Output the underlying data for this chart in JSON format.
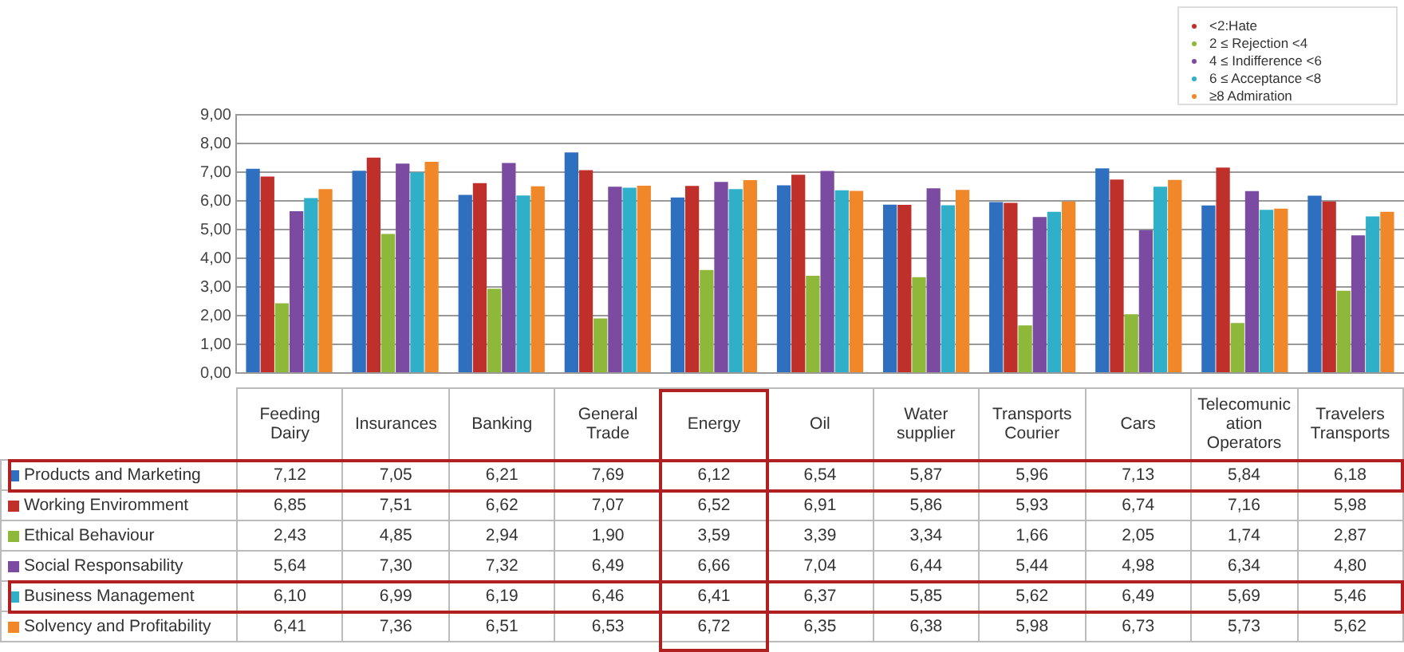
{
  "chart_data": {
    "type": "bar",
    "categories": [
      "Feeding Dairy",
      "Insurances",
      "Banking",
      "General Trade",
      "Energy",
      "Oil",
      "Water supplier",
      "Transports Courier",
      "Cars",
      "Telecomunication Operators",
      "Travelers Transports"
    ],
    "series": [
      {
        "name": "Products and Marketing",
        "color": "#2e6fc0",
        "values": [
          7.12,
          7.05,
          6.21,
          7.69,
          6.12,
          6.54,
          5.87,
          5.96,
          7.13,
          5.84,
          6.18
        ],
        "value_labels": [
          "7,12",
          "7,05",
          "6,21",
          "7,69",
          "6,12",
          "6,54",
          "5,87",
          "5,96",
          "7,13",
          "5,84",
          "6,18"
        ]
      },
      {
        "name": "Working Enviromment",
        "color": "#c0302a",
        "values": [
          6.85,
          7.51,
          6.62,
          7.07,
          6.52,
          6.91,
          5.86,
          5.93,
          6.74,
          7.16,
          5.98
        ],
        "value_labels": [
          "6,85",
          "7,51",
          "6,62",
          "7,07",
          "6,52",
          "6,91",
          "5,86",
          "5,93",
          "6,74",
          "7,16",
          "5,98"
        ]
      },
      {
        "name": "Ethical Behaviour",
        "color": "#8db83a",
        "values": [
          2.43,
          4.85,
          2.94,
          1.9,
          3.59,
          3.39,
          3.34,
          1.66,
          2.05,
          1.74,
          2.87
        ],
        "value_labels": [
          "2,43",
          "4,85",
          "2,94",
          "1,90",
          "3,59",
          "3,39",
          "3,34",
          "1,66",
          "2,05",
          "1,74",
          "2,87"
        ]
      },
      {
        "name": "Social Responsability",
        "color": "#7a4ba0",
        "values": [
          5.64,
          7.3,
          7.32,
          6.49,
          6.66,
          7.04,
          6.44,
          5.44,
          4.98,
          6.34,
          4.8
        ],
        "value_labels": [
          "5,64",
          "7,30",
          "7,32",
          "6,49",
          "6,66",
          "7,04",
          "6,44",
          "5,44",
          "4,98",
          "6,34",
          "4,80"
        ]
      },
      {
        "name": "Business Management",
        "color": "#2fb0c8",
        "values": [
          6.1,
          6.99,
          6.19,
          6.46,
          6.41,
          6.37,
          5.85,
          5.62,
          6.49,
          5.69,
          5.46
        ],
        "value_labels": [
          "6,10",
          "6,99",
          "6,19",
          "6,46",
          "6,41",
          "6,37",
          "5,85",
          "5,62",
          "6,49",
          "5,69",
          "5,46"
        ]
      },
      {
        "name": "Solvency and Profitability",
        "color": "#f0882a",
        "values": [
          6.41,
          7.36,
          6.51,
          6.53,
          6.72,
          6.35,
          6.38,
          5.98,
          6.73,
          5.73,
          5.62
        ],
        "value_labels": [
          "6,41",
          "7,36",
          "6,51",
          "6,53",
          "6,72",
          "6,35",
          "6,38",
          "5,98",
          "6,73",
          "5,73",
          "5,62"
        ]
      }
    ],
    "ylim": [
      0,
      9
    ],
    "yticks": [
      {
        "value": 0,
        "label": "0,00"
      },
      {
        "value": 1,
        "label": "1,00"
      },
      {
        "value": 2,
        "label": "2,00"
      },
      {
        "value": 3,
        "label": "3,00"
      },
      {
        "value": 4,
        "label": "4,00"
      },
      {
        "value": 5,
        "label": "5,00"
      },
      {
        "value": 6,
        "label": "6,00"
      },
      {
        "value": 7,
        "label": "7,00"
      },
      {
        "value": 8,
        "label": "8,00"
      },
      {
        "value": 9,
        "label": "9,00"
      }
    ],
    "grid": "y",
    "legend": "bottom left",
    "annotations": [
      "<2:Hate",
      "2 ≤ Rejection <4",
      "4 ≤ Indifference <6",
      "6 ≤ Acceptance <8",
      "≥8 Admiration"
    ]
  }
}
